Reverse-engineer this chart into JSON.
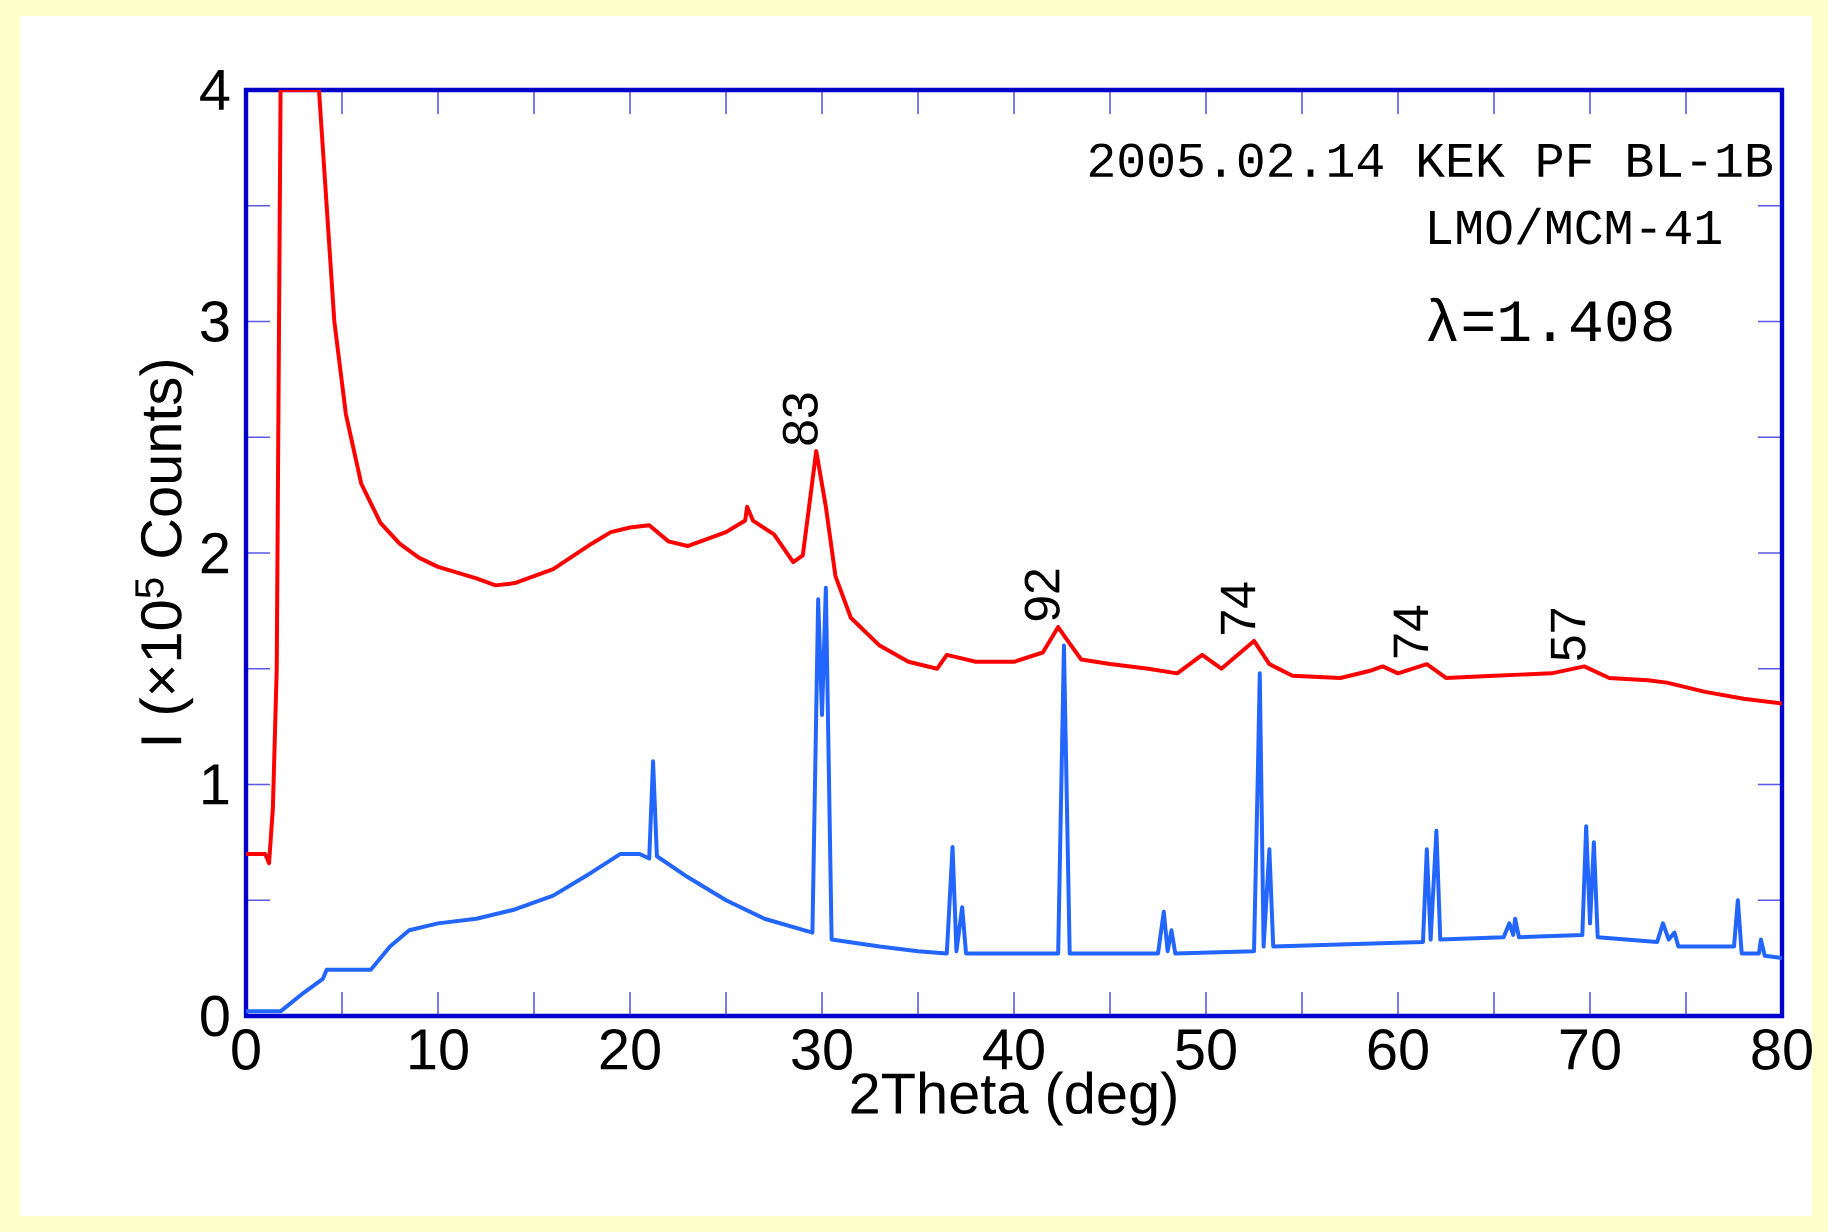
{
  "chart_data": {
    "type": "line",
    "xlabel": "2Theta (deg)",
    "ylabel": "I  (×10$^{5}$ Counts)",
    "xlim": [
      0,
      80
    ],
    "ylim": [
      0,
      4
    ],
    "xticks": [
      0,
      10,
      20,
      30,
      40,
      50,
      60,
      70,
      80
    ],
    "yticks": [
      0,
      1,
      2,
      3,
      4
    ],
    "grid": false,
    "marker": "none",
    "line_style": "solid",
    "series": [
      {
        "color": "#ff0000",
        "x": [
          0,
          1.0,
          1.2,
          1.4,
          1.6,
          1.8,
          3.8,
          4.2,
          4.6,
          5.2,
          6,
          7,
          8,
          9,
          10,
          12,
          13,
          14,
          16,
          18,
          19,
          20,
          21,
          22,
          23,
          24,
          25,
          26,
          26.1,
          26.4,
          27.5,
          28.5,
          29,
          29.7,
          30.2,
          30.7,
          31.5,
          33,
          34.5,
          36,
          36.5,
          37,
          38,
          40,
          41.5,
          42.3,
          42.8,
          43.5,
          45,
          47,
          48.5,
          49.8,
          50.8,
          52.5,
          53.3,
          54.5,
          57,
          58.5,
          59.2,
          60,
          61.5,
          62.5,
          65,
          68,
          69.7,
          71,
          73,
          74,
          76,
          78,
          80
        ],
        "values": [
          0.7,
          0.7,
          0.66,
          0.9,
          1.5,
          4.0,
          4.0,
          3.5,
          3.0,
          2.6,
          2.3,
          2.13,
          2.04,
          1.98,
          1.94,
          1.89,
          1.86,
          1.87,
          1.93,
          2.04,
          2.09,
          2.11,
          2.12,
          2.05,
          2.03,
          2.06,
          2.09,
          2.14,
          2.2,
          2.14,
          2.08,
          1.96,
          1.99,
          2.44,
          2.2,
          1.9,
          1.72,
          1.6,
          1.53,
          1.5,
          1.56,
          1.55,
          1.53,
          1.53,
          1.57,
          1.68,
          1.62,
          1.54,
          1.52,
          1.5,
          1.48,
          1.56,
          1.5,
          1.62,
          1.52,
          1.47,
          1.46,
          1.49,
          1.51,
          1.48,
          1.52,
          1.46,
          1.47,
          1.48,
          1.51,
          1.46,
          1.45,
          1.44,
          1.4,
          1.37,
          1.35
        ]
      },
      {
        "color": "#2266ff",
        "x": [
          0,
          1.8,
          3,
          4,
          4.2,
          6.5,
          7.5,
          8.5,
          10,
          12,
          14,
          16,
          18,
          19.5,
          20.5,
          21,
          21.2,
          21.4,
          23,
          25,
          27,
          29.5,
          29.8,
          30.0,
          30.2,
          30.5,
          33,
          35,
          36.5,
          36.8,
          37.0,
          37.3,
          37.5,
          42.3,
          42.6,
          42.9,
          47.5,
          47.8,
          48.0,
          48.2,
          48.4,
          52.5,
          52.7,
          52.8,
          53.0,
          53.3,
          53.5,
          61.3,
          61.5,
          61.7,
          62.0,
          62.2,
          65.5,
          65.8,
          66.0,
          66.1,
          66.3,
          69.6,
          69.8,
          70.0,
          70.2,
          70.4,
          73.5,
          73.8,
          74.1,
          74.4,
          74.6,
          77.5,
          77.7,
          77.9,
          78.8,
          78.9,
          79.1,
          80
        ],
        "values": [
          0.02,
          0.02,
          0.1,
          0.16,
          0.2,
          0.2,
          0.3,
          0.37,
          0.4,
          0.42,
          0.46,
          0.52,
          0.62,
          0.7,
          0.7,
          0.68,
          1.1,
          0.69,
          0.6,
          0.5,
          0.42,
          0.36,
          1.8,
          1.3,
          1.85,
          0.33,
          0.3,
          0.28,
          0.27,
          0.73,
          0.28,
          0.47,
          0.27,
          0.27,
          1.6,
          0.27,
          0.27,
          0.45,
          0.28,
          0.37,
          0.27,
          0.28,
          1.05,
          1.48,
          0.3,
          0.72,
          0.3,
          0.32,
          0.72,
          0.33,
          0.8,
          0.33,
          0.34,
          0.4,
          0.35,
          0.42,
          0.34,
          0.35,
          0.82,
          0.4,
          0.75,
          0.34,
          0.32,
          0.4,
          0.33,
          0.36,
          0.3,
          0.3,
          0.5,
          0.27,
          0.27,
          0.33,
          0.26,
          0.25
        ]
      }
    ],
    "annotations": [
      "2005.02.14 KEK PF BL-1B",
      "LMO/MCM-41",
      "λ=1.408",
      {
        "text": "83",
        "x": 29.7,
        "y": 2.44
      },
      {
        "text": "92",
        "x": 42.3,
        "y": 1.68
      },
      {
        "text": "74",
        "x": 52.5,
        "y": 1.62
      },
      {
        "text": "74",
        "x": 61.5,
        "y": 1.52
      },
      {
        "text": "57",
        "x": 69.7,
        "y": 1.51
      }
    ]
  }
}
